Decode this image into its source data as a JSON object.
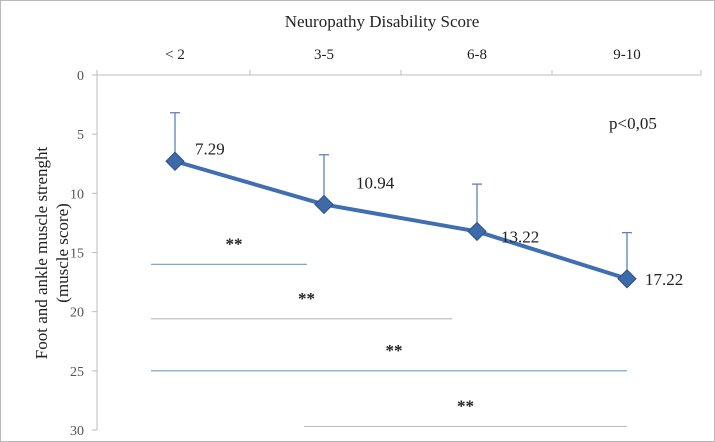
{
  "chart_data": {
    "type": "line",
    "title": "Neuropathy Disability Score",
    "xlabel": "Neuropathy Disability Score",
    "ylabel": "Foot and ankle muscle strenght (muscle score)",
    "ylabel_lines": [
      "Foot and ankle muscle strenght",
      "(muscle score)"
    ],
    "categories": [
      "< 2",
      "3-5",
      "6-8",
      "9-10"
    ],
    "series": [
      {
        "values": [
          7.29,
          10.94,
          13.22,
          17.22
        ],
        "error_up": [
          4.1,
          4.2,
          4.0,
          3.9
        ],
        "color": "#3f6fb2"
      }
    ],
    "data_labels": [
      "7.29",
      "10.94",
      "13.22",
      "17.22"
    ],
    "ylim": [
      0,
      30
    ],
    "y_ticks": [
      0,
      5,
      10,
      15,
      20,
      25,
      30
    ],
    "y_inverted": true,
    "x_axis_position": "top",
    "annotations": {
      "p_value": "p<0,05",
      "significance": [
        {
          "label": "**",
          "from": "< 2",
          "to": "3-5",
          "y": 16
        },
        {
          "label": "**",
          "from": "< 2",
          "to": "6-8",
          "y": 20.6
        },
        {
          "label": "**",
          "from": "< 2",
          "to": "9-10",
          "y": 25
        },
        {
          "label": "**",
          "from": "3-5",
          "to": "9-10",
          "y": 29.7
        }
      ]
    },
    "grid": false,
    "legend": "none"
  }
}
